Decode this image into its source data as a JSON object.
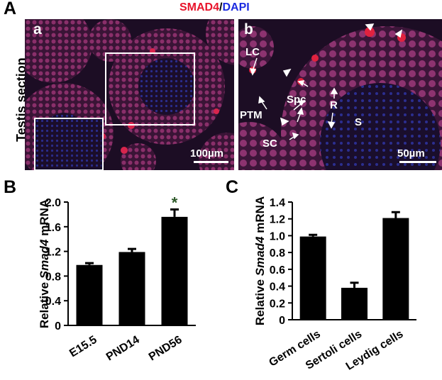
{
  "figure": {
    "panel_a_letter": "A",
    "panel_b_letter": "B",
    "panel_c_letter": "C",
    "stain_label_red": "SMAD4",
    "stain_label_sep": "/",
    "stain_label_blue": "DAPI",
    "stain_red_color": "#e8132b",
    "stain_blue_color": "#1c2be0",
    "row_label": "Testis section",
    "image_a": {
      "sub_letter": "a",
      "scale_label": "100µm"
    },
    "image_b": {
      "sub_letter": "b",
      "scale_label": "50µm",
      "cell_labels": {
        "lc": "LC",
        "spc": "Spc",
        "ptm": "PTM",
        "r": "R",
        "s": "S",
        "sc": "SC"
      }
    }
  },
  "chart_data": [
    {
      "type": "bar",
      "panel": "B",
      "categories": [
        "E15.5",
        "PND14",
        "PND56"
      ],
      "values": [
        0.98,
        1.19,
        1.76
      ],
      "errors": [
        0.03,
        0.05,
        0.12
      ],
      "significance": [
        "",
        "",
        "*"
      ],
      "ylabel_prefix": "Relative ",
      "ylabel_gene": "Smad4",
      "ylabel_suffix": " mRNA",
      "ylim": [
        0,
        2.0
      ],
      "yticks": [
        "0",
        "0.4",
        "0.8",
        "1.2",
        "1.6",
        "2.0"
      ],
      "bar_color": "#000000",
      "significance_color": "#2e5a2a"
    },
    {
      "type": "bar",
      "panel": "C",
      "categories": [
        "Germ cells",
        "Sertoli cells",
        "Leydig cells"
      ],
      "values": [
        0.99,
        0.38,
        1.21
      ],
      "errors": [
        0.02,
        0.06,
        0.07
      ],
      "ylabel_prefix": "Relative ",
      "ylabel_gene": "Smad4",
      "ylabel_suffix": " mRNA",
      "ylim": [
        0,
        1.4
      ],
      "yticks": [
        "0",
        "0.2",
        "0.4",
        "0.6",
        "0.8",
        "1.0",
        "1.2",
        "1.4"
      ],
      "bar_color": "#000000"
    }
  ]
}
